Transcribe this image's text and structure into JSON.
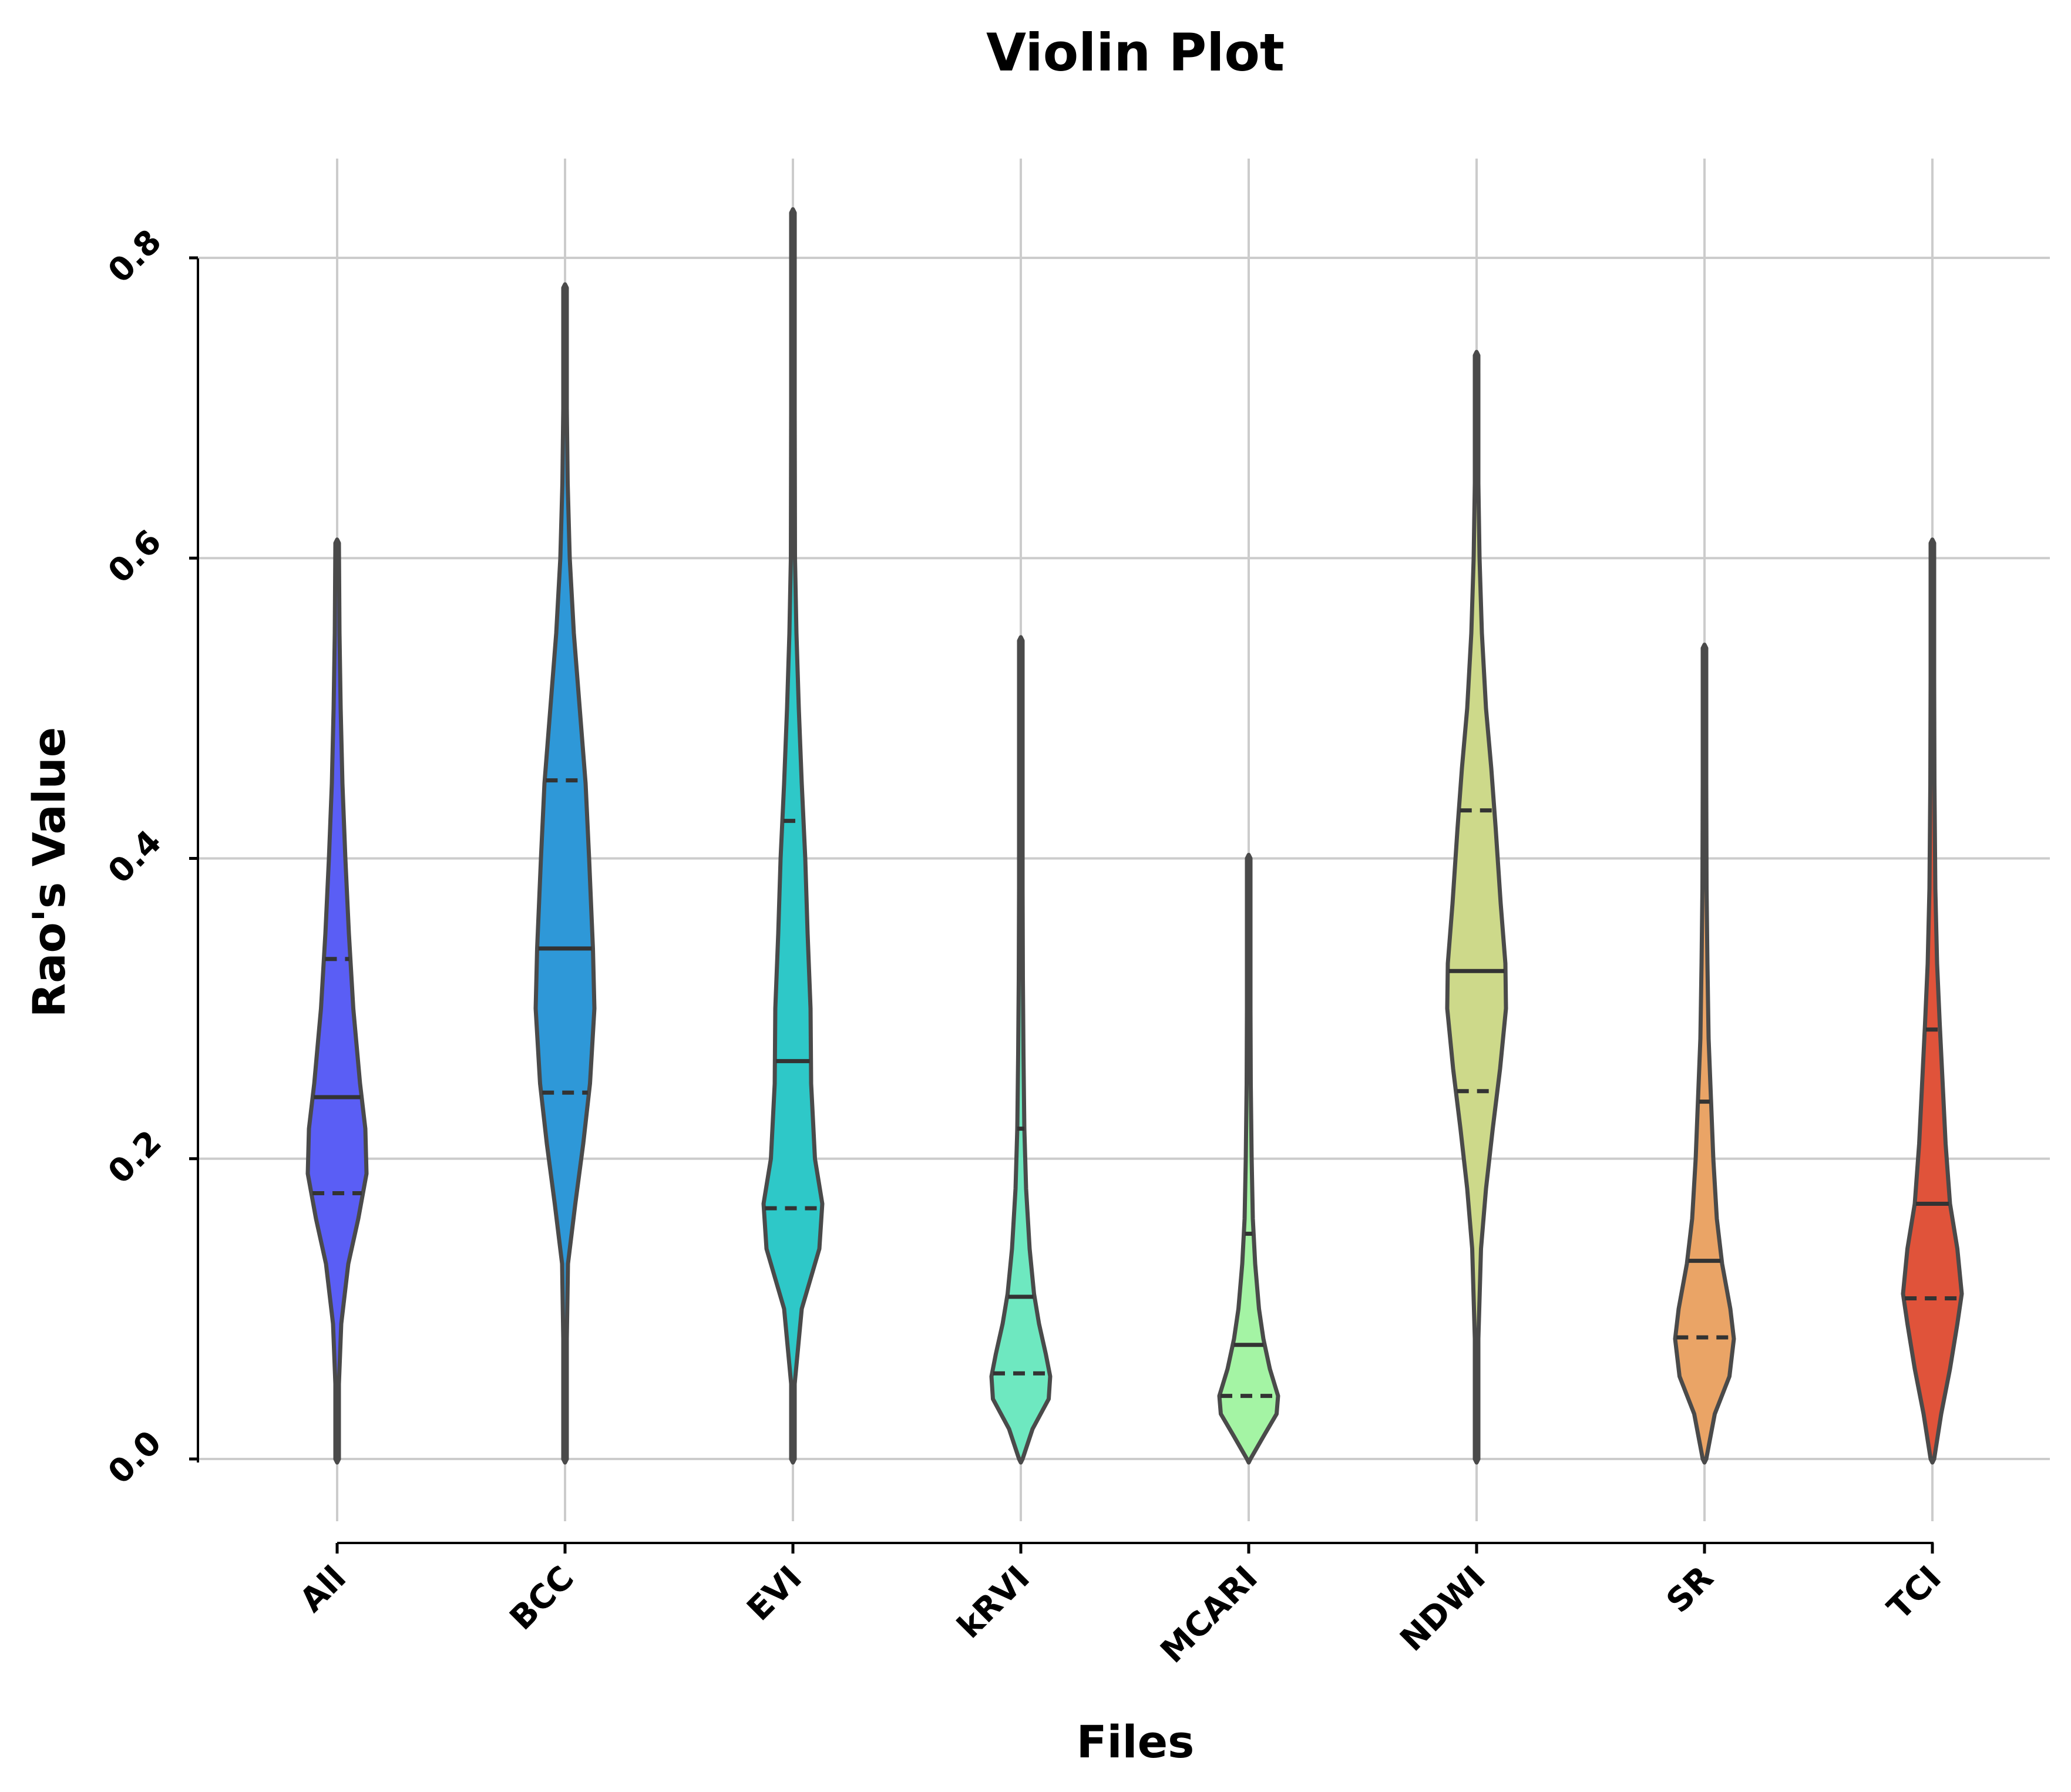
{
  "chart_data": {
    "type": "violin",
    "title": "Violin Plot",
    "xlabel": "Files",
    "ylabel": "Rao's Value",
    "categories": [
      "All",
      "BCC",
      "EVI",
      "kRVI",
      "MCARI",
      "NDWI",
      "SR",
      "TCI"
    ],
    "yticks": [
      "0.0",
      "0.2",
      "0.4",
      "0.6",
      "0.8"
    ],
    "ylim": [
      -0.04,
      0.87
    ],
    "grid": true,
    "colors": [
      "#5a5ef5",
      "#2e98d8",
      "#2ec8c8",
      "#6ee8c0",
      "#a4f4a4",
      "#cdd98a",
      "#eaa466",
      "#e0533a"
    ],
    "series": [
      {
        "name": "All",
        "min": 0.0,
        "max": 0.61,
        "q1": 0.177,
        "median": 0.241,
        "q3": 0.333,
        "density": [
          [
            0.0,
            0.02
          ],
          [
            0.05,
            0.06
          ],
          [
            0.09,
            0.14
          ],
          [
            0.13,
            0.38
          ],
          [
            0.16,
            0.72
          ],
          [
            0.19,
            1.0
          ],
          [
            0.22,
            0.96
          ],
          [
            0.25,
            0.78
          ],
          [
            0.3,
            0.55
          ],
          [
            0.35,
            0.4
          ],
          [
            0.4,
            0.28
          ],
          [
            0.45,
            0.18
          ],
          [
            0.5,
            0.12
          ],
          [
            0.55,
            0.08
          ],
          [
            0.61,
            0.02
          ]
        ]
      },
      {
        "name": "BCC",
        "min": 0.0,
        "max": 0.78,
        "q1": 0.244,
        "median": 0.34,
        "q3": 0.452,
        "density": [
          [
            0.0,
            0.02
          ],
          [
            0.08,
            0.04
          ],
          [
            0.13,
            0.1
          ],
          [
            0.17,
            0.35
          ],
          [
            0.21,
            0.62
          ],
          [
            0.25,
            0.85
          ],
          [
            0.3,
            1.0
          ],
          [
            0.34,
            0.95
          ],
          [
            0.4,
            0.82
          ],
          [
            0.45,
            0.7
          ],
          [
            0.5,
            0.5
          ],
          [
            0.55,
            0.3
          ],
          [
            0.6,
            0.16
          ],
          [
            0.65,
            0.09
          ],
          [
            0.7,
            0.05
          ],
          [
            0.78,
            0.02
          ]
        ]
      },
      {
        "name": "EVI",
        "min": 0.0,
        "max": 0.83,
        "q1": 0.167,
        "median": 0.265,
        "q3": 0.425,
        "density": [
          [
            0.0,
            0.02
          ],
          [
            0.05,
            0.06
          ],
          [
            0.1,
            0.3
          ],
          [
            0.14,
            0.9
          ],
          [
            0.17,
            1.0
          ],
          [
            0.2,
            0.75
          ],
          [
            0.25,
            0.62
          ],
          [
            0.3,
            0.6
          ],
          [
            0.35,
            0.5
          ],
          [
            0.4,
            0.42
          ],
          [
            0.45,
            0.3
          ],
          [
            0.5,
            0.2
          ],
          [
            0.55,
            0.12
          ],
          [
            0.6,
            0.07
          ],
          [
            0.7,
            0.04
          ],
          [
            0.83,
            0.02
          ]
        ]
      },
      {
        "name": "kRVI",
        "min": 0.0,
        "max": 0.545,
        "q1": 0.057,
        "median": 0.108,
        "q3": 0.22,
        "density": [
          [
            0.0,
            0.05
          ],
          [
            0.02,
            0.4
          ],
          [
            0.04,
            0.95
          ],
          [
            0.055,
            1.0
          ],
          [
            0.07,
            0.85
          ],
          [
            0.09,
            0.62
          ],
          [
            0.11,
            0.45
          ],
          [
            0.14,
            0.3
          ],
          [
            0.18,
            0.18
          ],
          [
            0.22,
            0.12
          ],
          [
            0.27,
            0.09
          ],
          [
            0.32,
            0.07
          ],
          [
            0.38,
            0.05
          ],
          [
            0.45,
            0.04
          ],
          [
            0.545,
            0.02
          ]
        ]
      },
      {
        "name": "MCARI",
        "min": 0.0,
        "max": 0.4,
        "q1": 0.042,
        "median": 0.076,
        "q3": 0.15,
        "density": [
          [
            0.0,
            0.05
          ],
          [
            0.015,
            0.5
          ],
          [
            0.03,
            0.95
          ],
          [
            0.042,
            1.0
          ],
          [
            0.06,
            0.72
          ],
          [
            0.08,
            0.5
          ],
          [
            0.1,
            0.35
          ],
          [
            0.13,
            0.22
          ],
          [
            0.16,
            0.14
          ],
          [
            0.2,
            0.1
          ],
          [
            0.25,
            0.07
          ],
          [
            0.3,
            0.05
          ],
          [
            0.35,
            0.04
          ],
          [
            0.4,
            0.02
          ]
        ]
      },
      {
        "name": "NDWI",
        "min": 0.0,
        "max": 0.735,
        "q1": 0.245,
        "median": 0.325,
        "q3": 0.432,
        "density": [
          [
            0.0,
            0.02
          ],
          [
            0.08,
            0.05
          ],
          [
            0.14,
            0.15
          ],
          [
            0.18,
            0.32
          ],
          [
            0.22,
            0.55
          ],
          [
            0.26,
            0.8
          ],
          [
            0.3,
            1.0
          ],
          [
            0.33,
            0.98
          ],
          [
            0.37,
            0.82
          ],
          [
            0.42,
            0.65
          ],
          [
            0.46,
            0.5
          ],
          [
            0.5,
            0.32
          ],
          [
            0.55,
            0.18
          ],
          [
            0.6,
            0.1
          ],
          [
            0.65,
            0.06
          ],
          [
            0.735,
            0.02
          ]
        ]
      },
      {
        "name": "SR",
        "min": 0.0,
        "max": 0.54,
        "q1": 0.081,
        "median": 0.132,
        "q3": 0.238,
        "density": [
          [
            0.0,
            0.04
          ],
          [
            0.03,
            0.35
          ],
          [
            0.055,
            0.85
          ],
          [
            0.08,
            1.0
          ],
          [
            0.1,
            0.88
          ],
          [
            0.13,
            0.6
          ],
          [
            0.16,
            0.42
          ],
          [
            0.2,
            0.3
          ],
          [
            0.24,
            0.22
          ],
          [
            0.28,
            0.14
          ],
          [
            0.33,
            0.1
          ],
          [
            0.38,
            0.07
          ],
          [
            0.45,
            0.05
          ],
          [
            0.54,
            0.02
          ]
        ]
      },
      {
        "name": "TCI",
        "min": 0.0,
        "max": 0.61,
        "q1": 0.107,
        "median": 0.17,
        "q3": 0.286,
        "density": [
          [
            0.0,
            0.04
          ],
          [
            0.03,
            0.3
          ],
          [
            0.06,
            0.6
          ],
          [
            0.09,
            0.85
          ],
          [
            0.11,
            1.0
          ],
          [
            0.14,
            0.85
          ],
          [
            0.17,
            0.6
          ],
          [
            0.21,
            0.45
          ],
          [
            0.25,
            0.35
          ],
          [
            0.29,
            0.25
          ],
          [
            0.33,
            0.16
          ],
          [
            0.38,
            0.1
          ],
          [
            0.45,
            0.07
          ],
          [
            0.52,
            0.04
          ],
          [
            0.61,
            0.02
          ]
        ]
      }
    ]
  }
}
